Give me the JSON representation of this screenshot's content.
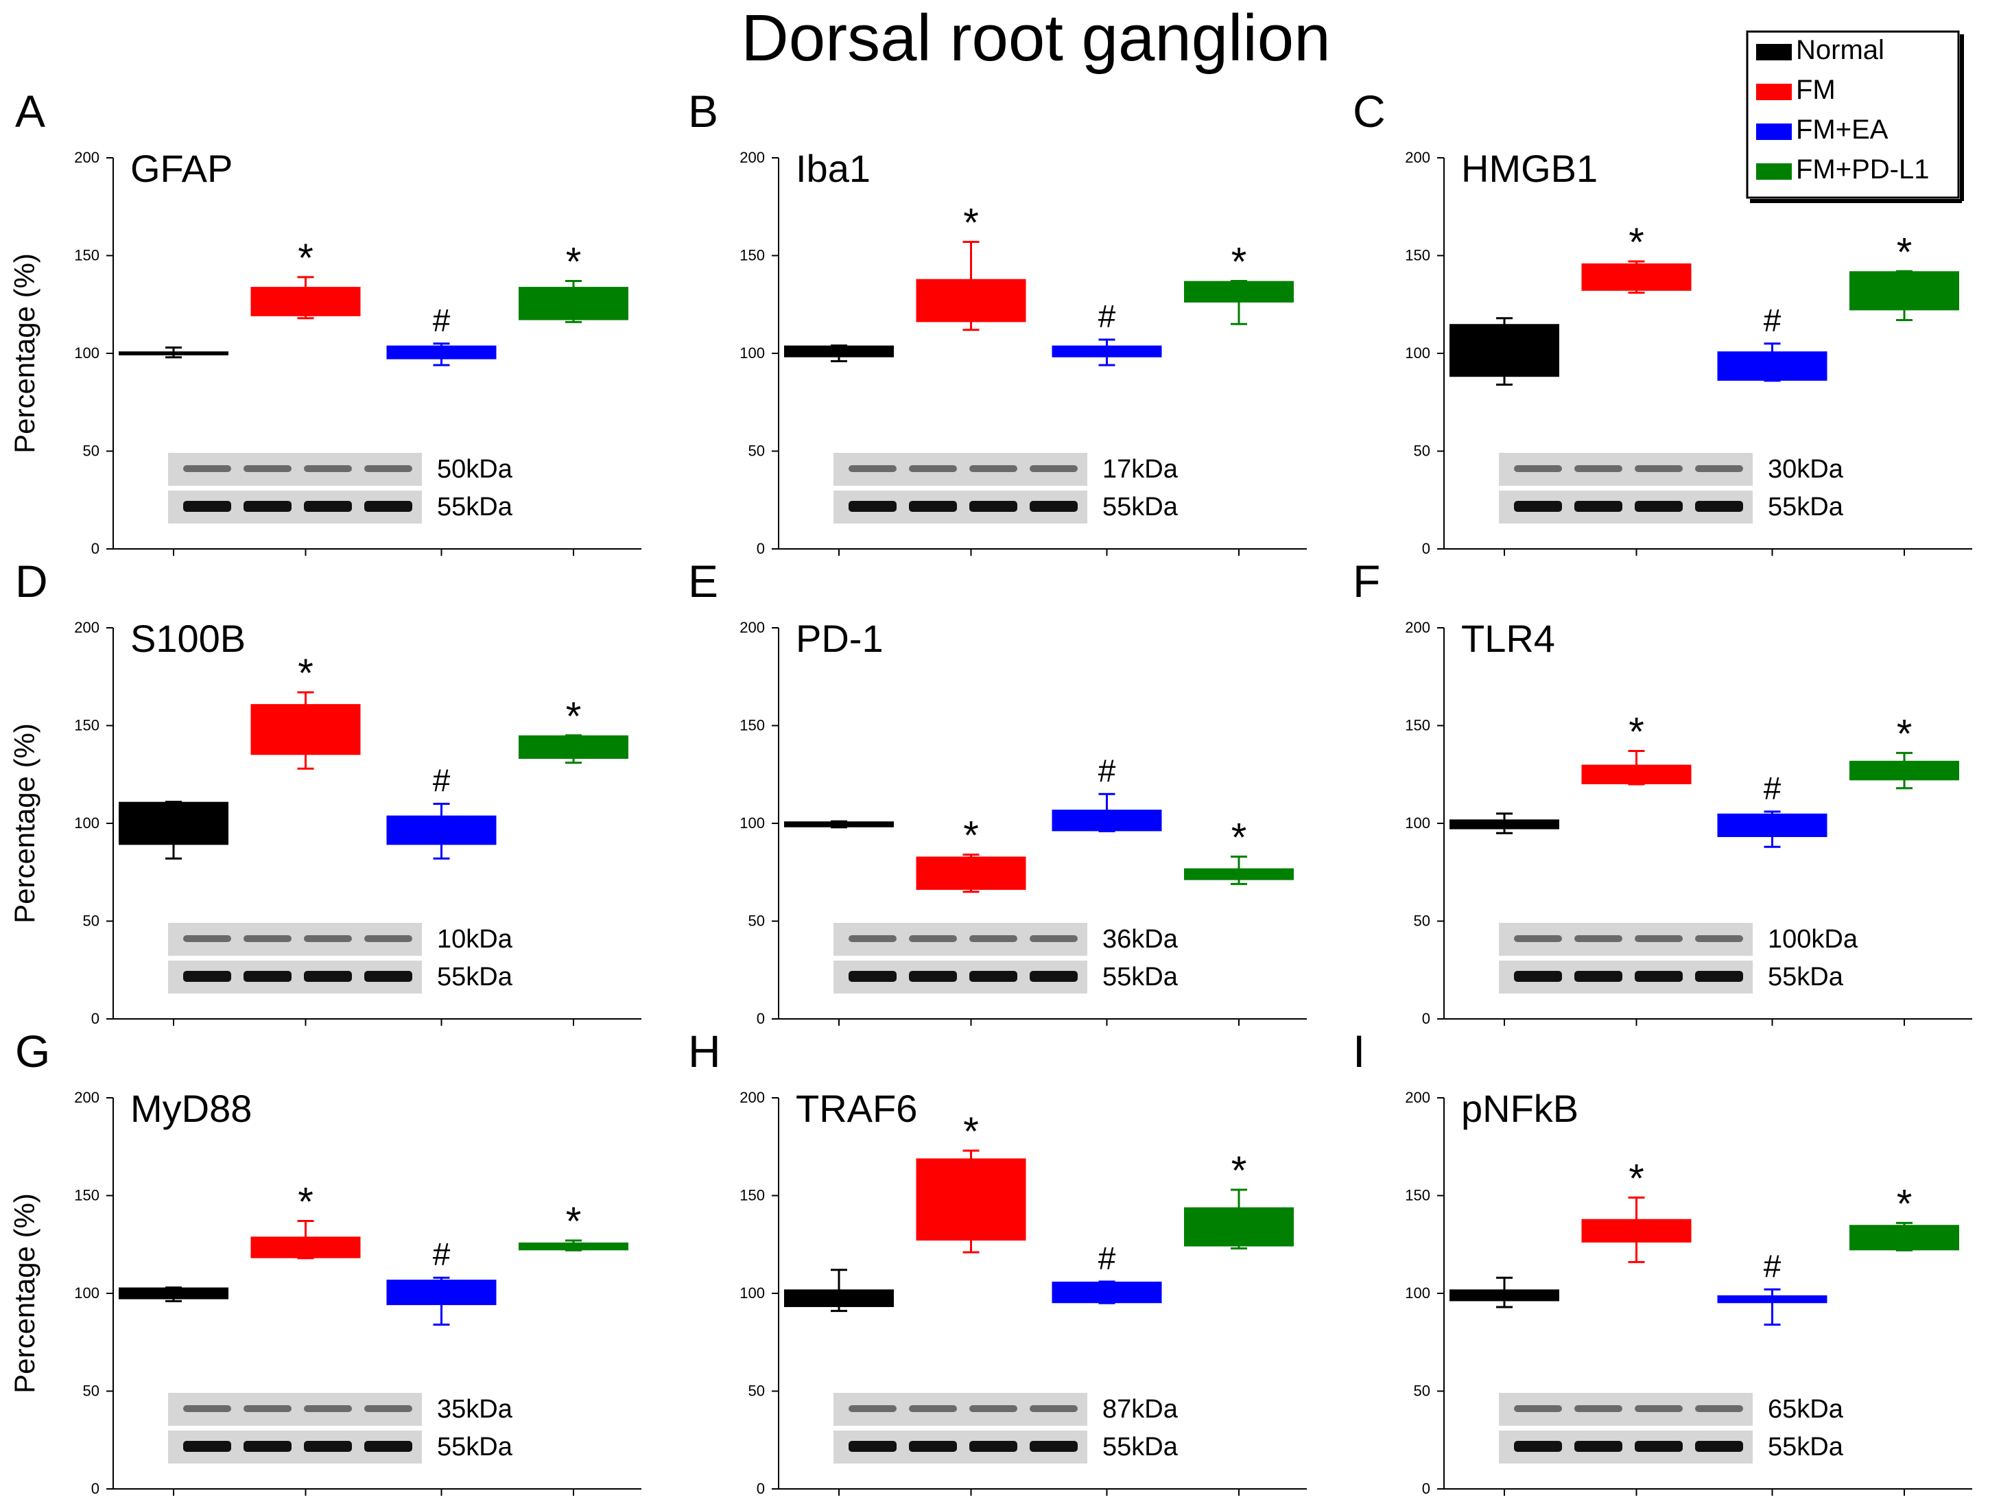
{
  "title": "Dorsal root ganglion",
  "y_axis_label": "Percentage (%)",
  "legend": [
    {
      "label": "Normal",
      "color": "#000000"
    },
    {
      "label": "FM",
      "color": "#ff0000"
    },
    {
      "label": "FM+EA",
      "color": "#0000ff"
    },
    {
      "label": "FM+PD-L1",
      "color": "#008000"
    }
  ],
  "chart_data": [
    {
      "type": "bar",
      "panel": "A",
      "title": "GFAP",
      "ylabel": "Percentage (%)",
      "ylim": [
        0,
        200
      ],
      "yticks": [
        0,
        50,
        100,
        150,
        200
      ],
      "categories": [
        "Normal",
        "FM",
        "FM+EA",
        "FM+PD-L1"
      ],
      "boxes": [
        [
          99,
          101
        ],
        [
          119,
          134
        ],
        [
          97,
          104
        ],
        [
          117,
          134
        ]
      ],
      "error_bars": [
        [
          98,
          103
        ],
        [
          118,
          139
        ],
        [
          94,
          105
        ],
        [
          116,
          137
        ]
      ],
      "marks": [
        "",
        "*",
        "#",
        "*"
      ],
      "blot_labels": [
        "50kDa",
        "55kDa"
      ]
    },
    {
      "type": "bar",
      "panel": "B",
      "title": "Iba1",
      "ylabel": "",
      "ylim": [
        0,
        200
      ],
      "yticks": [
        0,
        50,
        100,
        150,
        200
      ],
      "categories": [
        "Normal",
        "FM",
        "FM+EA",
        "FM+PD-L1"
      ],
      "boxes": [
        [
          98,
          104
        ],
        [
          116,
          138
        ],
        [
          98,
          104
        ],
        [
          126,
          137
        ]
      ],
      "error_bars": [
        [
          96,
          104
        ],
        [
          112,
          157
        ],
        [
          94,
          107
        ],
        [
          115,
          137
        ]
      ],
      "marks": [
        "",
        "*",
        "#",
        "*"
      ],
      "blot_labels": [
        "17kDa",
        "55kDa"
      ]
    },
    {
      "type": "bar",
      "panel": "C",
      "title": "HMGB1",
      "ylabel": "",
      "ylim": [
        0,
        200
      ],
      "yticks": [
        0,
        50,
        100,
        150,
        200
      ],
      "categories": [
        "Normal",
        "FM",
        "FM+EA",
        "FM+PD-L1"
      ],
      "boxes": [
        [
          88,
          115
        ],
        [
          132,
          146
        ],
        [
          86,
          101
        ],
        [
          122,
          142
        ]
      ],
      "error_bars": [
        [
          84,
          118
        ],
        [
          131,
          147
        ],
        [
          86,
          105
        ],
        [
          117,
          142
        ]
      ],
      "marks": [
        "",
        "*",
        "#",
        "*"
      ],
      "blot_labels": [
        "30kDa",
        "55kDa"
      ]
    },
    {
      "type": "bar",
      "panel": "D",
      "title": "S100B",
      "ylabel": "Percentage (%)",
      "ylim": [
        0,
        200
      ],
      "yticks": [
        0,
        50,
        100,
        150,
        200
      ],
      "categories": [
        "Normal",
        "FM",
        "FM+EA",
        "FM+PD-L1"
      ],
      "boxes": [
        [
          89,
          111
        ],
        [
          135,
          161
        ],
        [
          89,
          104
        ],
        [
          133,
          145
        ]
      ],
      "error_bars": [
        [
          82,
          111
        ],
        [
          128,
          167
        ],
        [
          82,
          110
        ],
        [
          131,
          145
        ]
      ],
      "marks": [
        "",
        "*",
        "#",
        "*"
      ],
      "blot_labels": [
        "10kDa",
        "55kDa"
      ]
    },
    {
      "type": "bar",
      "panel": "E",
      "title": "PD-1",
      "ylabel": "",
      "ylim": [
        0,
        200
      ],
      "yticks": [
        0,
        50,
        100,
        150,
        200
      ],
      "categories": [
        "Normal",
        "FM",
        "FM+EA",
        "FM+PD-L1"
      ],
      "boxes": [
        [
          98,
          101
        ],
        [
          66,
          83
        ],
        [
          96,
          107
        ],
        [
          71,
          77
        ]
      ],
      "error_bars": [
        [
          98,
          101
        ],
        [
          65,
          84
        ],
        [
          96,
          115
        ],
        [
          69,
          83
        ]
      ],
      "marks": [
        "",
        "*",
        "#",
        "*"
      ],
      "blot_labels": [
        "36kDa",
        "55kDa"
      ]
    },
    {
      "type": "bar",
      "panel": "F",
      "title": "TLR4",
      "ylabel": "",
      "ylim": [
        0,
        200
      ],
      "yticks": [
        0,
        50,
        100,
        150,
        200
      ],
      "categories": [
        "Normal",
        "FM",
        "FM+EA",
        "FM+PD-L1"
      ],
      "boxes": [
        [
          97,
          102
        ],
        [
          120,
          130
        ],
        [
          93,
          105
        ],
        [
          122,
          132
        ]
      ],
      "error_bars": [
        [
          95,
          105
        ],
        [
          120,
          137
        ],
        [
          88,
          106
        ],
        [
          118,
          136
        ]
      ],
      "marks": [
        "",
        "*",
        "#",
        "*"
      ],
      "blot_labels": [
        "100kDa",
        "55kDa"
      ]
    },
    {
      "type": "bar",
      "panel": "G",
      "title": "MyD88",
      "ylabel": "Percentage (%)",
      "ylim": [
        0,
        200
      ],
      "yticks": [
        0,
        50,
        100,
        150,
        200
      ],
      "categories": [
        "Normal",
        "FM",
        "FM+EA",
        "FM+PD-L1"
      ],
      "boxes": [
        [
          97,
          103
        ],
        [
          118,
          129
        ],
        [
          94,
          107
        ],
        [
          122,
          126
        ]
      ],
      "error_bars": [
        [
          96,
          103
        ],
        [
          118,
          137
        ],
        [
          84,
          108
        ],
        [
          122,
          127
        ]
      ],
      "marks": [
        "",
        "*",
        "#",
        "*"
      ],
      "blot_labels": [
        "35kDa",
        "55kDa"
      ]
    },
    {
      "type": "bar",
      "panel": "H",
      "title": "TRAF6",
      "ylabel": "",
      "ylim": [
        0,
        200
      ],
      "yticks": [
        0,
        50,
        100,
        150,
        200
      ],
      "categories": [
        "Normal",
        "FM",
        "FM+EA",
        "FM+PD-L1"
      ],
      "boxes": [
        [
          93,
          102
        ],
        [
          127,
          169
        ],
        [
          95,
          106
        ],
        [
          124,
          144
        ]
      ],
      "error_bars": [
        [
          91,
          112
        ],
        [
          121,
          173
        ],
        [
          95,
          106
        ],
        [
          123,
          153
        ]
      ],
      "marks": [
        "",
        "*",
        "#",
        "*"
      ],
      "blot_labels": [
        "87kDa",
        "55kDa"
      ]
    },
    {
      "type": "bar",
      "panel": "I",
      "title": "pNFkB",
      "ylabel": "",
      "ylim": [
        0,
        200
      ],
      "yticks": [
        0,
        50,
        100,
        150,
        200
      ],
      "categories": [
        "Normal",
        "FM",
        "FM+EA",
        "FM+PD-L1"
      ],
      "boxes": [
        [
          96,
          102
        ],
        [
          126,
          138
        ],
        [
          95,
          99
        ],
        [
          122,
          135
        ]
      ],
      "error_bars": [
        [
          93,
          108
        ],
        [
          116,
          149
        ],
        [
          84,
          102
        ],
        [
          122,
          136
        ]
      ],
      "marks": [
        "",
        "*",
        "#",
        "*"
      ],
      "blot_labels": [
        "65kDa",
        "55kDa"
      ]
    }
  ]
}
